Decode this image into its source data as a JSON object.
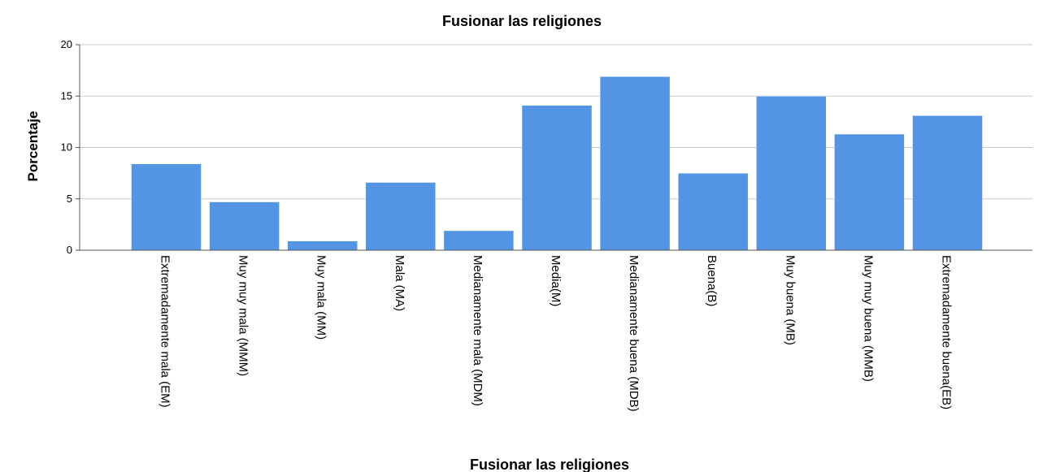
{
  "chart_data": {
    "type": "bar",
    "title": "Fusionar las religiones",
    "xlabel": "Fusionar las religiones",
    "ylabel": "Porcentaje",
    "ylim": [
      0,
      20
    ],
    "yticks": [
      0,
      5,
      10,
      15,
      20
    ],
    "grid": true,
    "bar_color": "#5494e4",
    "categories": [
      "Extremadamente mala (EM)",
      "Muy muy mala (MMM)",
      "Muy mala (MM)",
      "Mala (MA)",
      "Medianamente mala (MDM)",
      "Media(M)",
      "Medianamente buena (MDB)",
      "Buena(B)",
      "Muy buena (MB)",
      "Muy muy buena (MMB)",
      "Extremadamente buena(EB)"
    ],
    "values": [
      8.4,
      4.7,
      0.9,
      6.6,
      1.9,
      14.1,
      16.9,
      7.5,
      15.0,
      11.3,
      13.1
    ]
  }
}
